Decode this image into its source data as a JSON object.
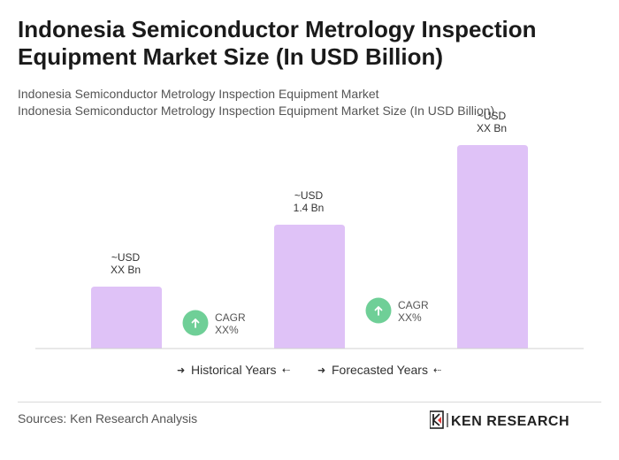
{
  "chart_data": {
    "type": "bar",
    "title": "Indonesia Semiconductor Metrology Inspection Equipment Market Size (In USD Billion)",
    "subtitle_1": "Indonesia Semiconductor Metrology Inspection Equipment Market",
    "subtitle_2": "Indonesia Semiconductor Metrology Inspection Equipment Market Size (In USD Billion)",
    "categories": [
      "",
      "",
      ""
    ],
    "values": [
      0.7,
      1.4,
      2.3
    ],
    "value_labels": [
      {
        "prefix": "~USD",
        "value": "XX Bn"
      },
      {
        "prefix": "~USD",
        "value": "1.4 Bn"
      },
      {
        "prefix": "~USD",
        "value": "XX Bn"
      }
    ],
    "cagr": [
      {
        "label": "CAGR",
        "value": "XX%"
      },
      {
        "label": "CAGR",
        "value": "XX%"
      }
    ],
    "legend": {
      "historical": "Historical Years",
      "forecasted": "Forecasted Years"
    },
    "bar_color": "#dfc2f7",
    "cagr_color": "#6fcf97",
    "ylim": [
      0,
      2.3
    ],
    "grid": false
  },
  "footer": {
    "source": "Sources: Ken Research Analysis",
    "logo_text": "KEN RESEARCH"
  }
}
